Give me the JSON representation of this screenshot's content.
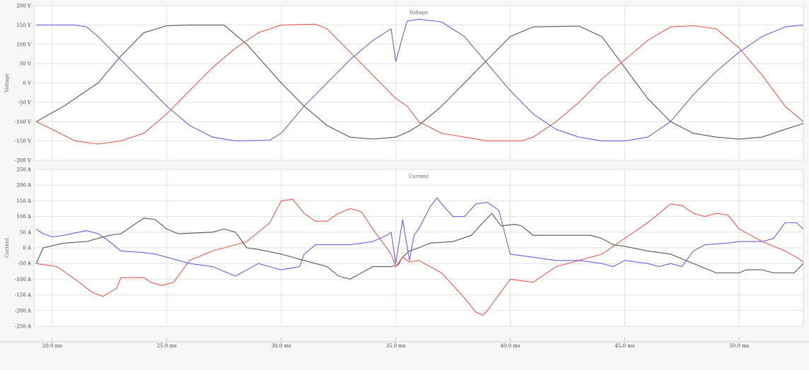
{
  "chart_data": [
    {
      "type": "line",
      "title": "Voltage",
      "ylabel": "Voltage",
      "ylim": [
        -200,
        200
      ],
      "y_ticks": [
        "200 V",
        "150 V",
        "100 V",
        "50 V",
        "0 V",
        "-50 V",
        "-100 V",
        "-150 V",
        "-200 V"
      ],
      "xlim": [
        19.2,
        52.8
      ],
      "grid": true,
      "series": [
        {
          "color": "#555555",
          "points": [
            [
              19.3,
              -100
            ],
            [
              20.5,
              -60
            ],
            [
              22,
              0
            ],
            [
              23,
              70
            ],
            [
              24,
              130
            ],
            [
              25,
              148
            ],
            [
              26,
              150
            ],
            [
              27.5,
              150
            ],
            [
              28.5,
              100
            ],
            [
              30,
              0
            ],
            [
              31,
              -60
            ],
            [
              32,
              -110
            ],
            [
              33,
              -140
            ],
            [
              34,
              -145
            ],
            [
              35,
              -140
            ],
            [
              35.6,
              -125
            ],
            [
              36,
              -110
            ],
            [
              37,
              -60
            ],
            [
              38,
              0
            ],
            [
              39,
              60
            ],
            [
              40,
              120
            ],
            [
              41,
              145
            ],
            [
              43,
              147
            ],
            [
              44,
              120
            ],
            [
              45,
              40
            ],
            [
              46,
              -40
            ],
            [
              47,
              -100
            ],
            [
              48,
              -130
            ],
            [
              49,
              -140
            ],
            [
              50,
              -145
            ],
            [
              51,
              -140
            ],
            [
              52,
              -120
            ],
            [
              52.8,
              -105
            ]
          ]
        },
        {
          "color": "#e85a50",
          "points": [
            [
              19.3,
              -100
            ],
            [
              20,
              -120
            ],
            [
              21,
              -150
            ],
            [
              22,
              -158
            ],
            [
              23,
              -150
            ],
            [
              24,
              -130
            ],
            [
              25,
              -80
            ],
            [
              26,
              -20
            ],
            [
              27,
              40
            ],
            [
              28,
              90
            ],
            [
              29,
              130
            ],
            [
              30,
              150
            ],
            [
              31.5,
              152
            ],
            [
              32,
              140
            ],
            [
              33,
              80
            ],
            [
              34,
              20
            ],
            [
              35,
              -40
            ],
            [
              35.5,
              -60
            ],
            [
              36,
              -100
            ],
            [
              37,
              -130
            ],
            [
              38,
              -140
            ],
            [
              39,
              -150
            ],
            [
              40,
              -150
            ],
            [
              40.5,
              -150
            ],
            [
              41,
              -140
            ],
            [
              42,
              -100
            ],
            [
              43,
              -50
            ],
            [
              44,
              10
            ],
            [
              45,
              60
            ],
            [
              46,
              110
            ],
            [
              47,
              145
            ],
            [
              48,
              148
            ],
            [
              49,
              140
            ],
            [
              50,
              90
            ],
            [
              51,
              20
            ],
            [
              52,
              -60
            ],
            [
              52.8,
              -100
            ]
          ]
        },
        {
          "color": "#6b5ee0",
          "points": [
            [
              19.3,
              150
            ],
            [
              21,
              150
            ],
            [
              21.5,
              145
            ],
            [
              22,
              120
            ],
            [
              23,
              60
            ],
            [
              24,
              0
            ],
            [
              25,
              -60
            ],
            [
              26,
              -110
            ],
            [
              27,
              -140
            ],
            [
              28,
              -150
            ],
            [
              29.5,
              -148
            ],
            [
              30,
              -130
            ],
            [
              31,
              -60
            ],
            [
              32,
              0
            ],
            [
              33,
              60
            ],
            [
              34,
              110
            ],
            [
              34.8,
              140
            ],
            [
              35,
              55
            ],
            [
              35.3,
              120
            ],
            [
              35.5,
              160
            ],
            [
              36,
              165
            ],
            [
              37,
              158
            ],
            [
              38,
              120
            ],
            [
              39,
              50
            ],
            [
              40,
              -20
            ],
            [
              41,
              -80
            ],
            [
              42,
              -120
            ],
            [
              43,
              -140
            ],
            [
              44,
              -150
            ],
            [
              45,
              -150
            ],
            [
              46,
              -140
            ],
            [
              47,
              -100
            ],
            [
              48,
              -30
            ],
            [
              49,
              30
            ],
            [
              50,
              80
            ],
            [
              51,
              120
            ],
            [
              52,
              145
            ],
            [
              52.8,
              150
            ]
          ]
        }
      ]
    },
    {
      "type": "line",
      "title": "Current",
      "ylabel": "Current",
      "ylim": [
        -250,
        250
      ],
      "y_ticks": [
        "250 A",
        "200 A",
        "150 A",
        "100 A",
        "50 A",
        "0 A",
        "-50 A",
        "-100 A",
        "-150 A",
        "-200 A",
        "-250 A"
      ],
      "xlim": [
        19.2,
        52.8
      ],
      "grid": true,
      "series": [
        {
          "color": "#555555",
          "points": [
            [
              19.3,
              -50
            ],
            [
              19.6,
              0
            ],
            [
              20.5,
              15
            ],
            [
              21.5,
              20
            ],
            [
              22.5,
              40
            ],
            [
              23,
              45
            ],
            [
              23.5,
              70
            ],
            [
              24,
              95
            ],
            [
              24.5,
              90
            ],
            [
              25,
              60
            ],
            [
              25.5,
              45
            ],
            [
              27,
              50
            ],
            [
              27.5,
              60
            ],
            [
              28,
              50
            ],
            [
              28.5,
              0
            ],
            [
              29,
              -5
            ],
            [
              30,
              -20
            ],
            [
              31,
              -40
            ],
            [
              32,
              -60
            ],
            [
              32.5,
              -90
            ],
            [
              33,
              -100
            ],
            [
              34,
              -60
            ],
            [
              34.8,
              -60
            ],
            [
              35.1,
              -55
            ],
            [
              35.3,
              -30
            ],
            [
              35.6,
              -10
            ],
            [
              36,
              0
            ],
            [
              36.5,
              15
            ],
            [
              37.5,
              20
            ],
            [
              38.3,
              40
            ],
            [
              38.8,
              80
            ],
            [
              39.2,
              110
            ],
            [
              39.6,
              70
            ],
            [
              40.2,
              75
            ],
            [
              40.5,
              70
            ],
            [
              41,
              40
            ],
            [
              42,
              40
            ],
            [
              43.5,
              40
            ],
            [
              44,
              30
            ],
            [
              44.5,
              10
            ],
            [
              45,
              5
            ],
            [
              46,
              -10
            ],
            [
              47,
              -20
            ],
            [
              48,
              -50
            ],
            [
              49,
              -80
            ],
            [
              50,
              -80
            ],
            [
              50.3,
              -70
            ],
            [
              51,
              -70
            ],
            [
              51.5,
              -80
            ],
            [
              52.4,
              -80
            ],
            [
              52.8,
              -50
            ]
          ]
        },
        {
          "color": "#e85a50",
          "points": [
            [
              19.3,
              -50
            ],
            [
              20.2,
              -60
            ],
            [
              21,
              -100
            ],
            [
              21.7,
              -140
            ],
            [
              22.2,
              -155
            ],
            [
              22.8,
              -130
            ],
            [
              23,
              -95
            ],
            [
              24,
              -95
            ],
            [
              24.3,
              -110
            ],
            [
              24.8,
              -120
            ],
            [
              25.3,
              -110
            ],
            [
              26,
              -40
            ],
            [
              27,
              -10
            ],
            [
              28,
              10
            ],
            [
              28.5,
              20
            ],
            [
              29.5,
              80
            ],
            [
              30,
              150
            ],
            [
              30.5,
              155
            ],
            [
              31,
              110
            ],
            [
              31.5,
              85
            ],
            [
              32,
              85
            ],
            [
              32.5,
              110
            ],
            [
              33,
              125
            ],
            [
              33.5,
              115
            ],
            [
              34,
              60
            ],
            [
              34.5,
              10
            ],
            [
              34.8,
              -20
            ],
            [
              35,
              -60
            ],
            [
              35.3,
              -30
            ],
            [
              35.6,
              -45
            ],
            [
              36,
              -40
            ],
            [
              37,
              -80
            ],
            [
              38,
              -160
            ],
            [
              38.5,
              -205
            ],
            [
              38.8,
              -215
            ],
            [
              39,
              -200
            ],
            [
              39.5,
              -150
            ],
            [
              40,
              -100
            ],
            [
              41,
              -110
            ],
            [
              42,
              -60
            ],
            [
              43,
              -40
            ],
            [
              44,
              -20
            ],
            [
              45,
              30
            ],
            [
              46,
              80
            ],
            [
              46.5,
              110
            ],
            [
              47,
              140
            ],
            [
              47.5,
              135
            ],
            [
              48,
              110
            ],
            [
              48.5,
              100
            ],
            [
              49,
              110
            ],
            [
              49.5,
              105
            ],
            [
              50,
              60
            ],
            [
              50.5,
              40
            ],
            [
              51,
              20
            ],
            [
              52,
              -10
            ],
            [
              52.5,
              -30
            ],
            [
              52.8,
              -45
            ]
          ]
        },
        {
          "color": "#6b5ee0",
          "points": [
            [
              19.3,
              60
            ],
            [
              19.6,
              45
            ],
            [
              20,
              35
            ],
            [
              20.5,
              40
            ],
            [
              21.5,
              55
            ],
            [
              22,
              45
            ],
            [
              22.5,
              20
            ],
            [
              23,
              -10
            ],
            [
              24,
              -15
            ],
            [
              24.5,
              -20
            ],
            [
              25,
              -30
            ],
            [
              26,
              -50
            ],
            [
              27,
              -60
            ],
            [
              28,
              -90
            ],
            [
              29,
              -50
            ],
            [
              29.5,
              -60
            ],
            [
              30,
              -70
            ],
            [
              30.8,
              -60
            ],
            [
              31,
              -20
            ],
            [
              31.5,
              10
            ],
            [
              32,
              10
            ],
            [
              33,
              10
            ],
            [
              34,
              20
            ],
            [
              34.6,
              40
            ],
            [
              34.8,
              50
            ],
            [
              35,
              -50
            ],
            [
              35.3,
              90
            ],
            [
              35.6,
              -40
            ],
            [
              35.8,
              40
            ],
            [
              36,
              60
            ],
            [
              36.5,
              130
            ],
            [
              36.8,
              160
            ],
            [
              37,
              140
            ],
            [
              37.5,
              100
            ],
            [
              38,
              100
            ],
            [
              38.5,
              140
            ],
            [
              39,
              145
            ],
            [
              39.5,
              120
            ],
            [
              40,
              -20
            ],
            [
              41,
              -30
            ],
            [
              42,
              -40
            ],
            [
              43,
              -40
            ],
            [
              44,
              -50
            ],
            [
              44.5,
              -60
            ],
            [
              45,
              -40
            ],
            [
              46,
              -50
            ],
            [
              46.5,
              -60
            ],
            [
              47,
              -50
            ],
            [
              47.5,
              -60
            ],
            [
              48,
              -10
            ],
            [
              48.5,
              10
            ],
            [
              49.5,
              15
            ],
            [
              50,
              20
            ],
            [
              51,
              20
            ],
            [
              51.5,
              30
            ],
            [
              52,
              80
            ],
            [
              52.5,
              80
            ],
            [
              52.8,
              60
            ]
          ]
        }
      ]
    },
    {
      "type": "axis",
      "x_ticks": [
        {
          "value": 20,
          "label": "20.0 ms"
        },
        {
          "value": 25,
          "label": "25.0 ms"
        },
        {
          "value": 30,
          "label": "30.0 ms"
        },
        {
          "value": 35,
          "label": "35.0 ms"
        },
        {
          "value": 40,
          "label": "40.0 ms"
        },
        {
          "value": 45,
          "label": "45.0 ms"
        },
        {
          "value": 50,
          "label": "50.0 ms"
        }
      ]
    }
  ]
}
